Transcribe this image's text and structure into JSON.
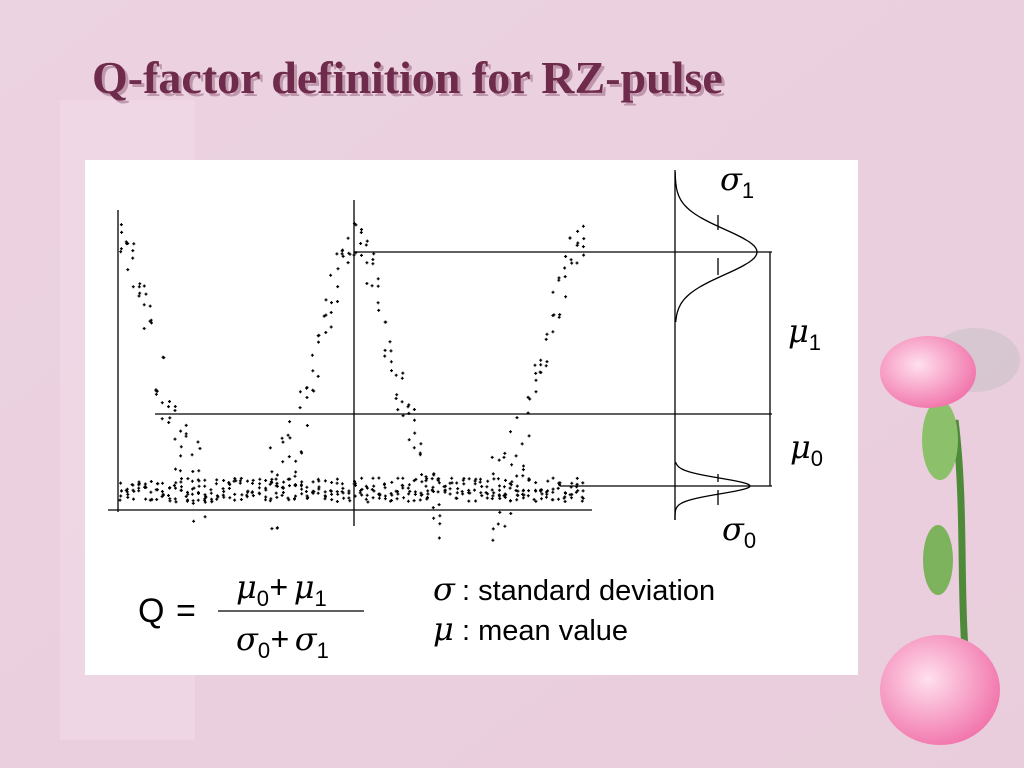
{
  "title": "Q-factor definition for RZ-pulse",
  "diagram": {
    "labels": [
      {
        "symbol": "σ",
        "subscript": "1"
      },
      {
        "symbol": "μ",
        "subscript": "1"
      },
      {
        "symbol": "μ",
        "subscript": "0"
      },
      {
        "symbol": "σ",
        "subscript": "0"
      }
    ]
  },
  "formula": {
    "lhs": "Q",
    "equals": "=",
    "numerator": [
      {
        "symbol": "μ",
        "subscript": "0"
      },
      "+",
      {
        "symbol": "μ",
        "subscript": "1"
      }
    ],
    "denominator": [
      {
        "symbol": "σ",
        "subscript": "0"
      },
      "+",
      {
        "symbol": "σ",
        "subscript": "1"
      }
    ]
  },
  "legend": [
    {
      "symbol": "σ",
      "text": ": standard deviation"
    },
    {
      "symbol": "μ",
      "text": ": mean value"
    }
  ]
}
